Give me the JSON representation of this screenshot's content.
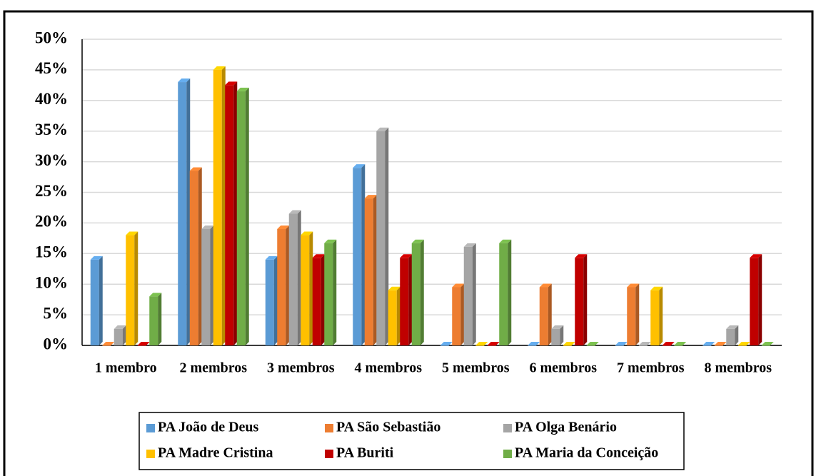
{
  "chart_data": {
    "type": "bar3d",
    "categories": [
      "1 membro",
      "2 membros",
      "3 membros",
      "4 membros",
      "5 membros",
      "6 membros",
      "7 membros",
      "8 membros"
    ],
    "series": [
      {
        "name": "PA João de Deus",
        "color": "#5b9bd5",
        "values": [
          14,
          43,
          14,
          29,
          0,
          0,
          0,
          0
        ]
      },
      {
        "name": "PA São Sebastião",
        "color": "#ed7d31",
        "values": [
          0,
          28.5,
          19,
          24,
          9.5,
          9.5,
          9.5,
          0
        ]
      },
      {
        "name": "PA Olga Benário",
        "color": "#a5a5a5",
        "values": [
          2.7,
          19,
          21.5,
          35,
          16.1,
          2.7,
          0,
          2.7
        ]
      },
      {
        "name": "PA Madre Cristina",
        "color": "#ffc000",
        "values": [
          18,
          45,
          18,
          9,
          0,
          0,
          9,
          0
        ]
      },
      {
        "name": "PA Buriti",
        "color": "#c00000",
        "values": [
          0,
          42.5,
          14.3,
          14.3,
          0,
          14.3,
          0,
          14.3
        ]
      },
      {
        "name": "PA Maria da Conceição",
        "color": "#70ad47",
        "values": [
          8,
          41.5,
          16.7,
          16.7,
          16.7,
          0,
          0,
          0
        ]
      }
    ],
    "ylim": [
      0,
      50
    ],
    "yticks": [
      {
        "value": 0,
        "label": "0%"
      },
      {
        "value": 5,
        "label": "5%"
      },
      {
        "value": 10,
        "label": "10%"
      },
      {
        "value": 15,
        "label": "15%"
      },
      {
        "value": 20,
        "label": "20%"
      },
      {
        "value": 25,
        "label": "25%"
      },
      {
        "value": 30,
        "label": "30%"
      },
      {
        "value": 35,
        "label": "35%"
      },
      {
        "value": 40,
        "label": "40%"
      },
      {
        "value": 45,
        "label": "45%"
      },
      {
        "value": 50,
        "label": "50%"
      }
    ],
    "grid": true
  }
}
